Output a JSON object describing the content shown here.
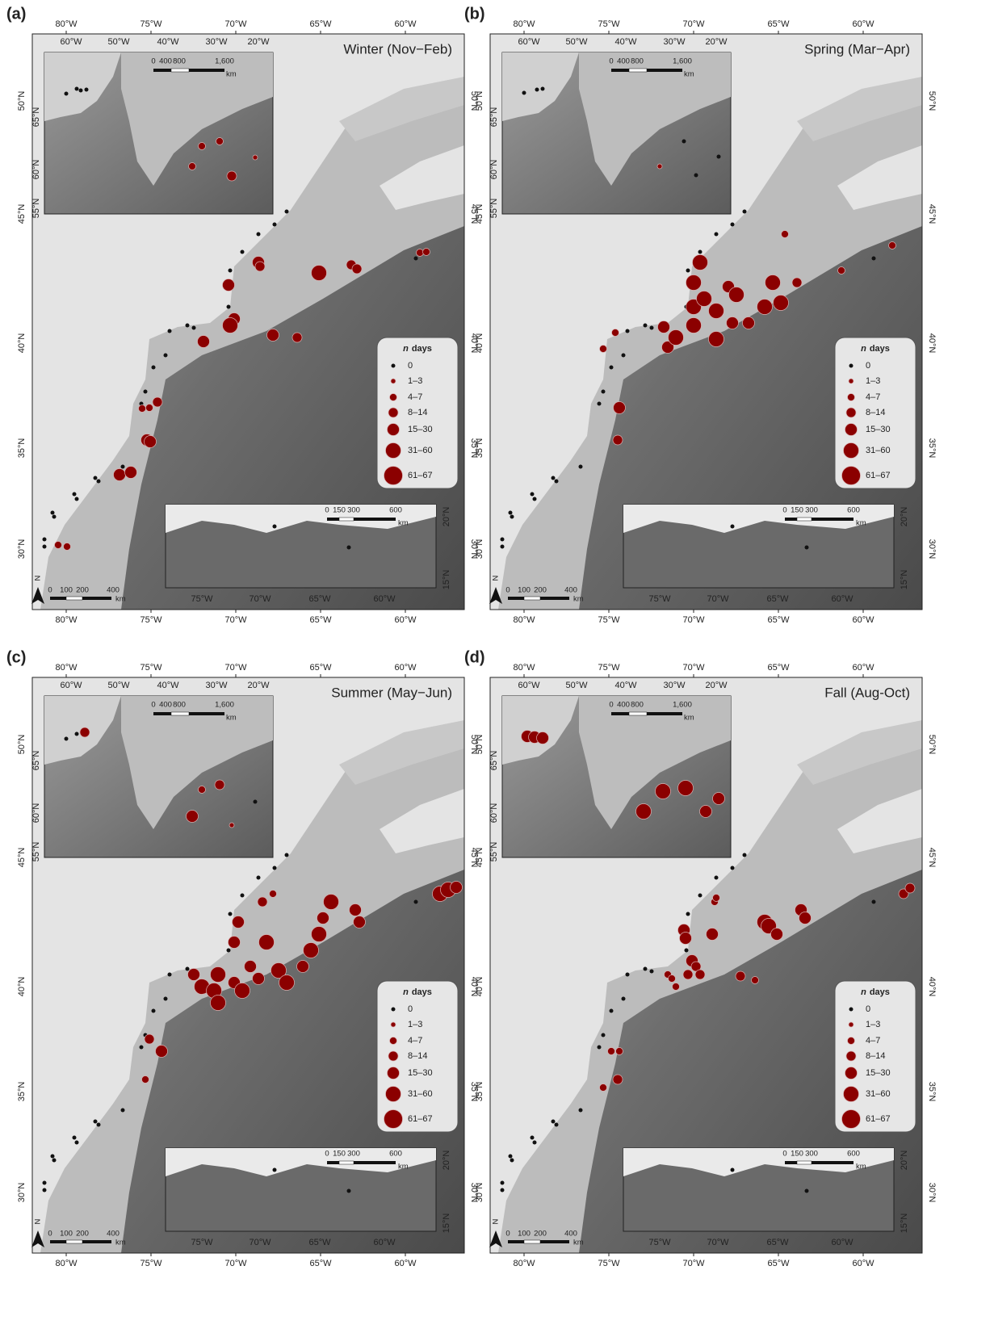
{
  "panels": [
    {
      "label": "(a)",
      "title": "Winter (Nov−Feb)"
    },
    {
      "label": "(b)",
      "title": "Spring (Mar−Apr)"
    },
    {
      "label": "(c)",
      "title": "Summer (May−Jun)"
    },
    {
      "label": "(d)",
      "title": "Fall (Aug-Oct)"
    }
  ],
  "map_axes": {
    "lon_labels": [
      "80°W",
      "75°W",
      "70°W",
      "65°W",
      "60°W"
    ],
    "lat_labels": [
      "50°N",
      "45°N",
      "40°N",
      "35°N",
      "30°N"
    ]
  },
  "inset_north": {
    "lon_labels": [
      "60°W",
      "50°W",
      "40°W",
      "30°W",
      "20°W"
    ],
    "lat_labels": [
      "65°N",
      "60°N",
      "55°N"
    ],
    "scale_labels": [
      "0",
      "400",
      "800",
      "1,600"
    ],
    "scale_unit": "km"
  },
  "inset_south": {
    "lon_labels": [
      "75°W",
      "70°W",
      "65°W",
      "60°W"
    ],
    "lat_labels": [
      "20°N",
      "15°N"
    ],
    "scale_labels": [
      "0",
      "150",
      "300",
      "600"
    ],
    "scale_unit": "km"
  },
  "main_scale": {
    "labels": [
      "0",
      "100",
      "200",
      "400"
    ],
    "unit": "km"
  },
  "north_arrow": "N",
  "legend": {
    "title_italic": "n",
    "title_rest": "days",
    "entries": [
      "0",
      "1–3",
      "4–7",
      "8–14",
      "15–30",
      "31–60",
      "61–67"
    ]
  }
}
